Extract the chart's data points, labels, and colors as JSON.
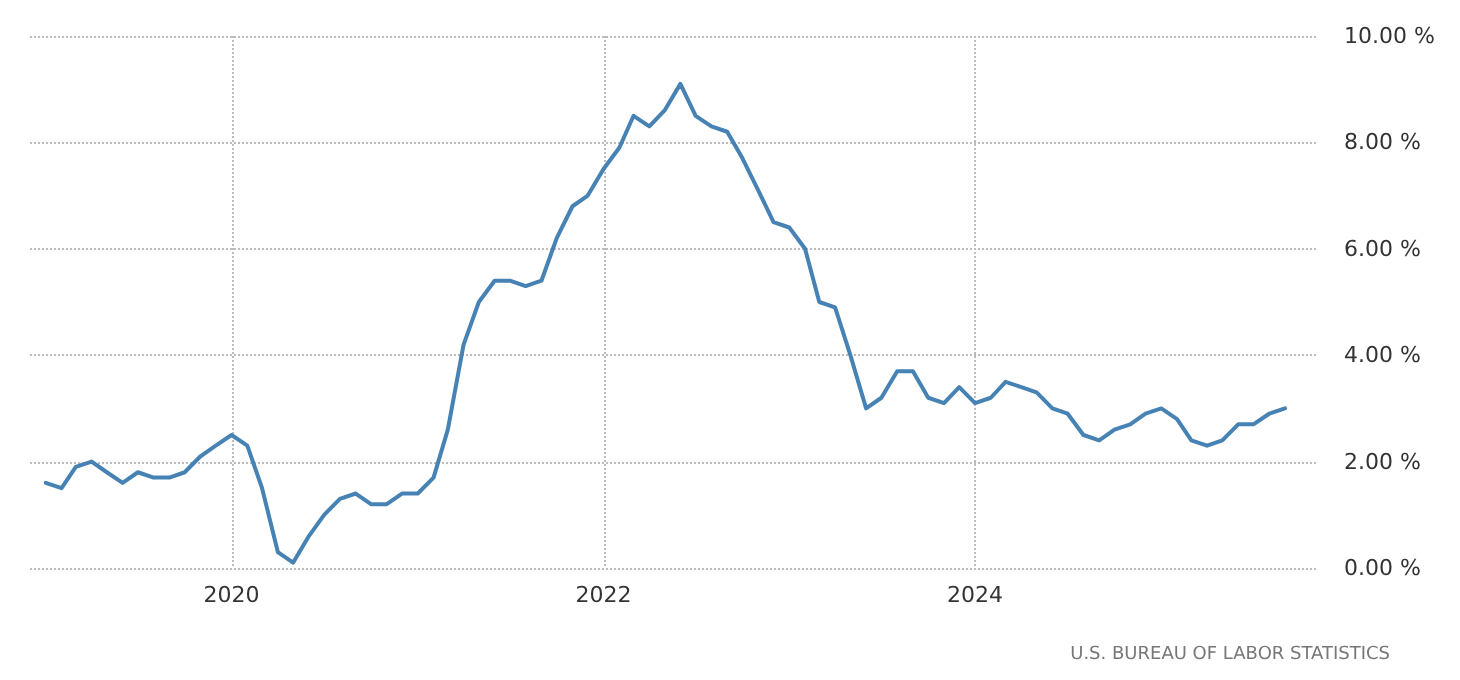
{
  "chart_data": {
    "type": "line",
    "x": [
      "2019-01",
      "2019-02",
      "2019-03",
      "2019-04",
      "2019-05",
      "2019-06",
      "2019-07",
      "2019-08",
      "2019-09",
      "2019-10",
      "2019-11",
      "2019-12",
      "2020-01",
      "2020-02",
      "2020-03",
      "2020-04",
      "2020-05",
      "2020-06",
      "2020-07",
      "2020-08",
      "2020-09",
      "2020-10",
      "2020-11",
      "2020-12",
      "2021-01",
      "2021-02",
      "2021-03",
      "2021-04",
      "2021-05",
      "2021-06",
      "2021-07",
      "2021-08",
      "2021-09",
      "2021-10",
      "2021-11",
      "2021-12",
      "2022-01",
      "2022-02",
      "2022-03",
      "2022-04",
      "2022-05",
      "2022-06",
      "2022-07",
      "2022-08",
      "2022-09",
      "2022-10",
      "2022-11",
      "2022-12",
      "2023-01",
      "2023-02",
      "2023-03",
      "2023-04",
      "2023-05",
      "2023-06",
      "2023-07",
      "2023-08",
      "2023-09",
      "2023-10",
      "2023-11",
      "2023-12",
      "2024-01",
      "2024-02",
      "2024-03",
      "2024-04",
      "2024-05",
      "2024-06",
      "2024-07",
      "2024-08",
      "2024-09",
      "2024-10",
      "2024-11",
      "2024-12",
      "2025-01",
      "2025-02",
      "2025-03",
      "2025-04",
      "2025-05",
      "2025-06",
      "2025-07",
      "2025-08",
      "2025-09"
    ],
    "series": [
      {
        "color": "#4682b4",
        "values": [
          1.6,
          1.5,
          1.9,
          2.0,
          1.8,
          1.6,
          1.8,
          1.7,
          1.7,
          1.8,
          2.1,
          2.3,
          2.5,
          2.3,
          1.5,
          0.3,
          0.1,
          0.6,
          1.0,
          1.3,
          1.4,
          1.2,
          1.2,
          1.4,
          1.4,
          1.7,
          2.6,
          4.2,
          5.0,
          5.4,
          5.4,
          5.3,
          5.4,
          6.2,
          6.8,
          7.0,
          7.5,
          7.9,
          8.5,
          8.3,
          8.6,
          9.1,
          8.5,
          8.3,
          8.2,
          7.7,
          7.1,
          6.5,
          6.4,
          6.0,
          5.0,
          4.9,
          4.0,
          3.0,
          3.2,
          3.7,
          3.7,
          3.2,
          3.1,
          3.4,
          3.1,
          3.2,
          3.5,
          3.4,
          3.3,
          3.0,
          2.9,
          2.5,
          2.4,
          2.6,
          2.7,
          2.9,
          3.0,
          2.8,
          2.4,
          2.3,
          2.4,
          2.7,
          2.7,
          2.9,
          3.0
        ]
      }
    ],
    "xlim": [
      "2018-12",
      "2025-11"
    ],
    "xticks": [
      {
        "value": "2020-01",
        "label": "2020"
      },
      {
        "value": "2022-01",
        "label": "2022"
      },
      {
        "value": "2024-01",
        "label": "2024"
      }
    ],
    "ylim": [
      0,
      10
    ],
    "yticks": [
      {
        "value": 0,
        "label": "0.00 %"
      },
      {
        "value": 2,
        "label": "2.00 %"
      },
      {
        "value": 4,
        "label": "4.00 %"
      },
      {
        "value": 6,
        "label": "6.00 %"
      },
      {
        "value": 8,
        "label": "8.00 %"
      },
      {
        "value": 10,
        "label": "10.00 %"
      }
    ],
    "grid": true,
    "marker": "none",
    "line_style": "solid",
    "annotations": [
      "U.S. BUREAU OF LABOR STATISTICS"
    ]
  }
}
